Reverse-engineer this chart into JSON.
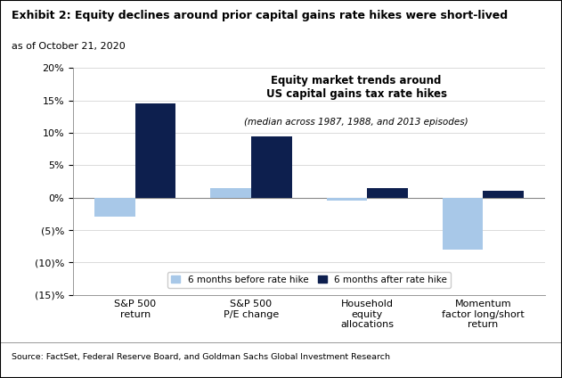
{
  "title_main": "Exhibit 2: Equity declines around prior capital gains rate hikes were short-lived",
  "title_sub": "as of October 21, 2020",
  "chart_title_line1": "Equity market trends around",
  "chart_title_line2": "US capital gains tax rate hikes",
  "chart_title_line3": "(median across 1987, 1988, and 2013 episodes)",
  "categories": [
    "S&P 500\nreturn",
    "S&P 500\nP/E change",
    "Household\nequity\nallocations",
    "Momentum\nfactor long/short\nreturn"
  ],
  "before_values": [
    -3.0,
    1.5,
    -0.5,
    -8.0
  ],
  "after_values": [
    14.5,
    9.5,
    1.5,
    1.0
  ],
  "color_before": "#a8c8e8",
  "color_after": "#0d1f4e",
  "ylim": [
    -15,
    20
  ],
  "yticks": [
    -15,
    -10,
    -5,
    0,
    5,
    10,
    15,
    20
  ],
  "ytick_labels": [
    "(15)%",
    "(10)%",
    "(5)%",
    "0%",
    "5%",
    "10%",
    "15%",
    "20%"
  ],
  "legend_before": "6 months before rate hike",
  "legend_after": "6 months after rate hike",
  "source_text": "Source: FactSet, Federal Reserve Board, and Goldman Sachs Global Investment Research",
  "bar_width": 0.35,
  "figure_bg": "#ffffff",
  "plot_bg": "#ffffff",
  "border_color": "#000000"
}
